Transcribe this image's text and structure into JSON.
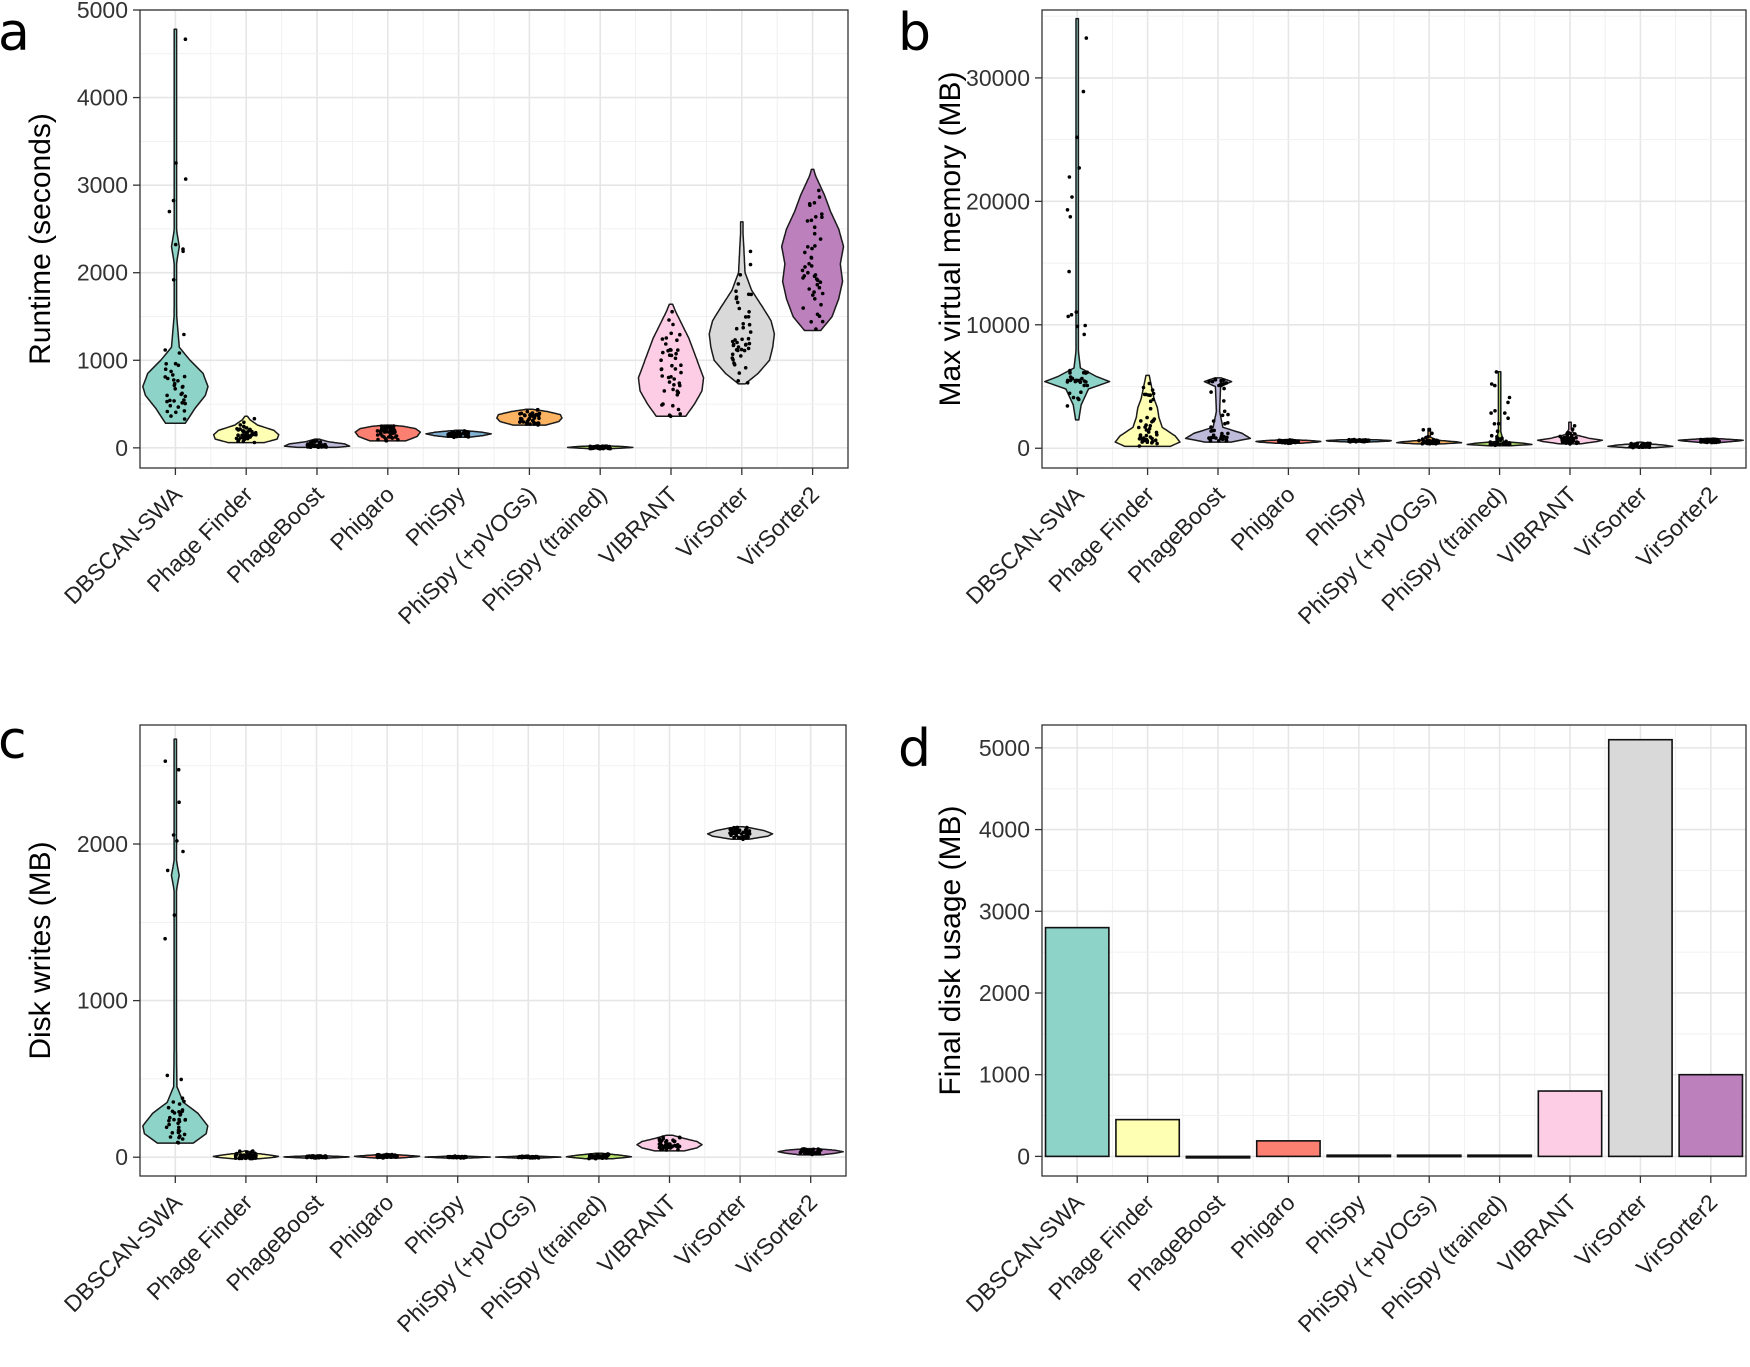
{
  "categories": [
    "DBSCAN-SWA",
    "Phage Finder",
    "PhageBoost",
    "Phigaro",
    "PhiSpy",
    "PhiSpy (+pVOGs)",
    "PhiSpy (trained)",
    "VIBRANT",
    "VirSorter",
    "VirSorter2"
  ],
  "colors": [
    "#8dd3c7",
    "#ffffb3",
    "#bebada",
    "#fb8072",
    "#80b1d3",
    "#fdb462",
    "#b3de69",
    "#fccde5",
    "#d9d9d9",
    "#bc80bd"
  ],
  "chart_data": [
    {
      "panel": "a",
      "type": "violin",
      "ylabel": "Runtime (seconds)",
      "ylim": [
        -230,
        5000
      ],
      "yticks": [
        0,
        1000,
        2000,
        3000,
        4000,
        5000
      ],
      "series": [
        {
          "min": 280,
          "max": 4780,
          "median": 700,
          "profile": [
            [
              280,
              0.3
            ],
            [
              450,
              0.6
            ],
            [
              600,
              0.92
            ],
            [
              700,
              1.0
            ],
            [
              850,
              0.85
            ],
            [
              1000,
              0.45
            ],
            [
              1150,
              0.12
            ],
            [
              1500,
              0.04
            ],
            [
              2100,
              0.03
            ],
            [
              2300,
              0.12
            ],
            [
              2500,
              0.03
            ],
            [
              3500,
              0.02
            ],
            [
              4780,
              0.02
            ]
          ]
        },
        {
          "min": 60,
          "max": 360,
          "median": 150,
          "profile": [
            [
              60,
              0.55
            ],
            [
              100,
              0.95
            ],
            [
              150,
              1.0
            ],
            [
              200,
              0.85
            ],
            [
              260,
              0.35
            ],
            [
              320,
              0.12
            ],
            [
              360,
              0.04
            ]
          ]
        },
        {
          "min": 5,
          "max": 100,
          "median": 35,
          "profile": [
            [
              5,
              0.6
            ],
            [
              20,
              1.0
            ],
            [
              45,
              0.85
            ],
            [
              70,
              0.35
            ],
            [
              100,
              0.06
            ]
          ]
        },
        {
          "min": 80,
          "max": 260,
          "median": 180,
          "profile": [
            [
              80,
              0.55
            ],
            [
              130,
              0.9
            ],
            [
              180,
              1.0
            ],
            [
              220,
              0.85
            ],
            [
              245,
              0.5
            ],
            [
              260,
              0.1
            ]
          ]
        },
        {
          "min": 120,
          "max": 200,
          "median": 160,
          "profile": [
            [
              120,
              0.3
            ],
            [
              140,
              0.75
            ],
            [
              160,
              1.0
            ],
            [
              180,
              0.7
            ],
            [
              200,
              0.1
            ]
          ]
        },
        {
          "min": 260,
          "max": 440,
          "median": 340,
          "profile": [
            [
              260,
              0.5
            ],
            [
              300,
              0.9
            ],
            [
              340,
              1.0
            ],
            [
              380,
              0.95
            ],
            [
              415,
              0.55
            ],
            [
              440,
              0.1
            ]
          ]
        },
        {
          "min": -10,
          "max": 25,
          "median": 5,
          "profile": [
            [
              -10,
              0.3
            ],
            [
              0,
              0.8
            ],
            [
              5,
              1.0
            ],
            [
              15,
              0.7
            ],
            [
              25,
              0.1
            ]
          ]
        },
        {
          "min": 360,
          "max": 1640,
          "median": 800,
          "profile": [
            [
              360,
              0.45
            ],
            [
              500,
              0.72
            ],
            [
              650,
              0.95
            ],
            [
              800,
              1.0
            ],
            [
              950,
              0.85
            ],
            [
              1100,
              0.7
            ],
            [
              1250,
              0.55
            ],
            [
              1400,
              0.35
            ],
            [
              1550,
              0.15
            ],
            [
              1640,
              0.05
            ]
          ]
        },
        {
          "min": 730,
          "max": 2580,
          "median": 1300,
          "profile": [
            [
              730,
              0.1
            ],
            [
              850,
              0.5
            ],
            [
              1000,
              0.85
            ],
            [
              1150,
              0.95
            ],
            [
              1300,
              1.0
            ],
            [
              1450,
              0.9
            ],
            [
              1600,
              0.65
            ],
            [
              1800,
              0.3
            ],
            [
              2000,
              0.1
            ],
            [
              2300,
              0.06
            ],
            [
              2500,
              0.03
            ],
            [
              2580,
              0.02
            ]
          ]
        },
        {
          "min": 1340,
          "max": 3180,
          "median": 2100,
          "profile": [
            [
              1340,
              0.25
            ],
            [
              1500,
              0.6
            ],
            [
              1700,
              0.8
            ],
            [
              1900,
              0.92
            ],
            [
              2100,
              0.85
            ],
            [
              2300,
              0.95
            ],
            [
              2500,
              0.8
            ],
            [
              2700,
              0.55
            ],
            [
              2900,
              0.35
            ],
            [
              3100,
              0.1
            ],
            [
              3180,
              0.03
            ]
          ]
        }
      ]
    },
    {
      "panel": "b",
      "type": "violin",
      "ylabel": "Max virtual memory (MB)",
      "ylim": [
        -1600,
        35500
      ],
      "yticks": [
        0,
        10000,
        20000,
        30000
      ],
      "series": [
        {
          "min": 2300,
          "max": 34800,
          "median": 5500,
          "profile": [
            [
              2300,
              0.05
            ],
            [
              3500,
              0.12
            ],
            [
              4800,
              0.35
            ],
            [
              5400,
              1.0
            ],
            [
              5800,
              0.6
            ],
            [
              6500,
              0.1
            ],
            [
              8000,
              0.03
            ],
            [
              20000,
              0.02
            ],
            [
              34800,
              0.02
            ]
          ]
        },
        {
          "min": 150,
          "max": 5900,
          "median": 900,
          "profile": [
            [
              150,
              0.7
            ],
            [
              500,
              1.0
            ],
            [
              1000,
              0.85
            ],
            [
              1700,
              0.45
            ],
            [
              2500,
              0.35
            ],
            [
              3300,
              0.3
            ],
            [
              4000,
              0.2
            ],
            [
              5000,
              0.12
            ],
            [
              5900,
              0.05
            ]
          ]
        },
        {
          "min": 500,
          "max": 5700,
          "median": 900,
          "profile": [
            [
              500,
              0.4
            ],
            [
              800,
              1.0
            ],
            [
              1200,
              0.75
            ],
            [
              1700,
              0.15
            ],
            [
              3000,
              0.05
            ],
            [
              5000,
              0.08
            ],
            [
              5400,
              0.42
            ],
            [
              5700,
              0.1
            ]
          ]
        },
        {
          "min": 400,
          "max": 700,
          "median": 550,
          "profile": [
            [
              400,
              0.35
            ],
            [
              500,
              0.9
            ],
            [
              550,
              1.0
            ],
            [
              620,
              0.7
            ],
            [
              700,
              0.1
            ]
          ]
        },
        {
          "min": 500,
          "max": 720,
          "median": 600,
          "profile": [
            [
              500,
              0.3
            ],
            [
              580,
              0.95
            ],
            [
              620,
              1.0
            ],
            [
              680,
              0.6
            ],
            [
              720,
              0.1
            ]
          ]
        },
        {
          "min": 350,
          "max": 1600,
          "median": 480,
          "profile": [
            [
              350,
              0.35
            ],
            [
              450,
              1.0
            ],
            [
              520,
              0.85
            ],
            [
              650,
              0.25
            ],
            [
              900,
              0.04
            ],
            [
              1600,
              0.02
            ]
          ]
        },
        {
          "min": 200,
          "max": 6200,
          "median": 320,
          "profile": [
            [
              200,
              0.35
            ],
            [
              300,
              1.0
            ],
            [
              400,
              0.75
            ],
            [
              550,
              0.12
            ],
            [
              1500,
              0.02
            ],
            [
              6200,
              0.02
            ]
          ]
        },
        {
          "min": 350,
          "max": 2100,
          "median": 650,
          "profile": [
            [
              350,
              0.3
            ],
            [
              550,
              0.85
            ],
            [
              650,
              1.0
            ],
            [
              800,
              0.6
            ],
            [
              1100,
              0.15
            ],
            [
              1500,
              0.04
            ],
            [
              2100,
              0.02
            ]
          ]
        },
        {
          "min": 40,
          "max": 500,
          "median": 180,
          "profile": [
            [
              40,
              0.4
            ],
            [
              150,
              1.0
            ],
            [
              250,
              0.75
            ],
            [
              350,
              0.3
            ],
            [
              500,
              0.04
            ]
          ]
        },
        {
          "min": 450,
          "max": 800,
          "median": 650,
          "profile": [
            [
              450,
              0.25
            ],
            [
              600,
              0.9
            ],
            [
              650,
              1.0
            ],
            [
              720,
              0.6
            ],
            [
              800,
              0.1
            ]
          ]
        }
      ]
    },
    {
      "panel": "c",
      "type": "violin",
      "ylabel": "Disk writes (MB)",
      "ylim": [
        -120,
        2760
      ],
      "yticks": [
        0,
        1000,
        2000
      ],
      "series": [
        {
          "min": 90,
          "max": 2670,
          "median": 190,
          "profile": [
            [
              90,
              0.55
            ],
            [
              150,
              0.95
            ],
            [
              200,
              1.0
            ],
            [
              280,
              0.7
            ],
            [
              350,
              0.25
            ],
            [
              450,
              0.05
            ],
            [
              1000,
              0.02
            ],
            [
              1700,
              0.03
            ],
            [
              1800,
              0.12
            ],
            [
              1900,
              0.03
            ],
            [
              2600,
              0.03
            ],
            [
              2670,
              0.02
            ]
          ]
        },
        {
          "min": -10,
          "max": 40,
          "median": 5,
          "profile": [
            [
              -10,
              0.4
            ],
            [
              0,
              0.9
            ],
            [
              5,
              1.0
            ],
            [
              15,
              0.7
            ],
            [
              25,
              0.3
            ],
            [
              40,
              0.04
            ]
          ]
        },
        {
          "min": -5,
          "max": 10,
          "median": 2,
          "profile": [
            [
              -5,
              0.4
            ],
            [
              0,
              0.9
            ],
            [
              2,
              1.0
            ],
            [
              6,
              0.6
            ],
            [
              10,
              0.1
            ]
          ]
        },
        {
          "min": -5,
          "max": 18,
          "median": 6,
          "profile": [
            [
              -5,
              0.4
            ],
            [
              3,
              0.9
            ],
            [
              6,
              1.0
            ],
            [
              12,
              0.6
            ],
            [
              18,
              0.1
            ]
          ]
        },
        {
          "min": -5,
          "max": 8,
          "median": 1,
          "profile": [
            [
              -5,
              0.4
            ],
            [
              0,
              0.9
            ],
            [
              1,
              1.0
            ],
            [
              4,
              0.6
            ],
            [
              8,
              0.1
            ]
          ]
        },
        {
          "min": -5,
          "max": 8,
          "median": 1,
          "profile": [
            [
              -5,
              0.4
            ],
            [
              0,
              0.9
            ],
            [
              1,
              1.0
            ],
            [
              4,
              0.6
            ],
            [
              8,
              0.1
            ]
          ]
        },
        {
          "min": -10,
          "max": 25,
          "median": 3,
          "profile": [
            [
              -10,
              0.4
            ],
            [
              0,
              0.9
            ],
            [
              3,
              1.0
            ],
            [
              12,
              0.7
            ],
            [
              25,
              0.1
            ]
          ]
        },
        {
          "min": 40,
          "max": 140,
          "median": 80,
          "profile": [
            [
              40,
              0.45
            ],
            [
              60,
              0.85
            ],
            [
              80,
              1.0
            ],
            [
              100,
              0.85
            ],
            [
              120,
              0.45
            ],
            [
              140,
              0.1
            ]
          ]
        },
        {
          "min": 2030,
          "max": 2110,
          "median": 2065,
          "profile": [
            [
              2030,
              0.25
            ],
            [
              2050,
              0.85
            ],
            [
              2065,
              1.0
            ],
            [
              2085,
              0.75
            ],
            [
              2100,
              0.4
            ],
            [
              2110,
              0.1
            ]
          ]
        },
        {
          "min": 15,
          "max": 55,
          "median": 35,
          "profile": [
            [
              15,
              0.35
            ],
            [
              25,
              0.75
            ],
            [
              35,
              1.0
            ],
            [
              45,
              0.75
            ],
            [
              55,
              0.1
            ]
          ]
        }
      ]
    },
    {
      "panel": "d",
      "type": "bar",
      "ylabel": "Final disk usage (MB)",
      "ylim": [
        -240,
        5280
      ],
      "yticks": [
        0,
        1000,
        2000,
        3000,
        4000,
        5000
      ],
      "values": [
        2800,
        450,
        0,
        190,
        15,
        15,
        15,
        800,
        5100,
        1000
      ]
    }
  ]
}
